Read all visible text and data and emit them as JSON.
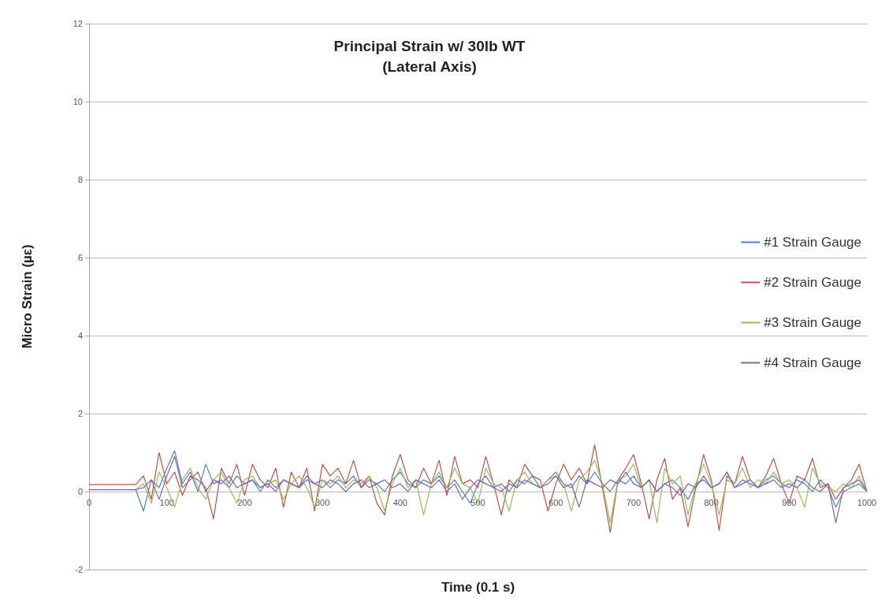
{
  "chart_data": {
    "type": "line",
    "title": "Principal Strain w/ 30lb WT\n(Lateral Axis)",
    "xlabel": "Time (0.1 s)",
    "ylabel": "Micro Strain (µε)",
    "x": [
      0,
      10,
      20,
      30,
      40,
      50,
      60,
      70,
      80,
      90,
      100,
      110,
      120,
      130,
      140,
      150,
      160,
      170,
      180,
      190,
      200,
      210,
      220,
      230,
      240,
      250,
      260,
      270,
      280,
      290,
      300,
      310,
      320,
      330,
      340,
      350,
      360,
      370,
      380,
      390,
      400,
      410,
      420,
      430,
      440,
      450,
      460,
      470,
      480,
      490,
      500,
      510,
      520,
      530,
      540,
      550,
      560,
      570,
      580,
      590,
      600,
      610,
      620,
      630,
      640,
      650,
      660,
      670,
      680,
      690,
      700,
      710,
      720,
      730,
      740,
      750,
      760,
      770,
      780,
      790,
      800,
      810,
      820,
      830,
      840,
      850,
      860,
      870,
      880,
      890,
      900,
      910,
      920,
      930,
      940,
      950,
      960,
      970,
      980,
      990,
      1000
    ],
    "series": [
      {
        "name": "#1 Strain Gauge",
        "color": "#4f81bd",
        "values": [
          null,
          null,
          null,
          null,
          null,
          0.05,
          0.05,
          -0.5,
          0.3,
          0.1,
          0.6,
          1.05,
          0.2,
          0.5,
          0.0,
          0.7,
          0.2,
          0.3,
          0.1,
          0.4,
          0.2,
          0.3,
          0.0,
          0.3,
          0.1,
          0.3,
          0.2,
          0.1,
          0.4,
          0.2,
          0.3,
          0.1,
          0.3,
          0.2,
          0.4,
          0.1,
          0.3,
          0.2,
          0.0,
          0.3,
          0.5,
          0.2,
          0.1,
          0.3,
          0.2,
          0.4,
          0.1,
          0.3,
          0.0,
          -0.3,
          0.2,
          0.4,
          0.1,
          0.2,
          0.0,
          0.3,
          0.2,
          0.4,
          0.1,
          0.3,
          0.5,
          0.2,
          0.1,
          0.4,
          0.2,
          0.5,
          0.2,
          0.0,
          0.3,
          0.2,
          0.4,
          0.1,
          0.3,
          0.0,
          0.2,
          0.3,
          0.1,
          -0.2,
          0.2,
          0.3,
          0.1,
          0.2,
          0.5,
          0.1,
          0.3,
          0.2,
          0.1,
          0.3,
          0.4,
          0.2,
          0.1,
          0.3,
          0.2,
          0.0,
          0.3,
          0.1,
          -0.4,
          0.0,
          0.1,
          0.2,
          0.0
        ]
      },
      {
        "name": "#2 Strain Gauge",
        "color": "#c0504d",
        "values": [
          0.18,
          0.18,
          0.18,
          0.18,
          0.18,
          0.18,
          0.18,
          0.4,
          -0.2,
          1.0,
          0.2,
          0.5,
          -0.1,
          0.4,
          0.3,
          0.1,
          -0.7,
          0.6,
          0.2,
          0.7,
          -0.1,
          0.7,
          0.3,
          0.1,
          0.6,
          -0.4,
          0.5,
          0.1,
          0.6,
          -0.5,
          0.7,
          0.4,
          0.6,
          0.2,
          0.8,
          0.1,
          0.4,
          -0.3,
          -0.6,
          0.4,
          0.95,
          0.3,
          0.1,
          0.6,
          0.2,
          0.8,
          -0.1,
          0.9,
          0.2,
          0.3,
          0.1,
          0.9,
          0.2,
          -0.6,
          0.3,
          0.1,
          0.7,
          0.4,
          0.3,
          -0.5,
          0.2,
          0.7,
          0.3,
          0.6,
          0.2,
          1.2,
          0.1,
          -1.05,
          0.3,
          0.6,
          0.95,
          0.2,
          -0.7,
          0.3,
          0.85,
          -0.2,
          0.1,
          -0.9,
          0.1,
          0.95,
          0.3,
          -1.0,
          0.4,
          0.2,
          0.9,
          0.3,
          0.1,
          0.4,
          0.85,
          0.2,
          -0.3,
          0.4,
          0.3,
          0.85,
          0.1,
          0.2,
          -0.2,
          0.1,
          0.3,
          0.7,
          0.0
        ]
      },
      {
        "name": "#3 Strain Gauge",
        "color": "#9bbb59",
        "values": [
          null,
          null,
          null,
          null,
          null,
          null,
          0.05,
          0.2,
          -0.3,
          0.5,
          0.1,
          -0.4,
          0.3,
          0.6,
          0.1,
          -0.2,
          0.3,
          0.5,
          0.1,
          -0.3,
          0.3,
          0.4,
          0.1,
          0.2,
          0.3,
          -0.2,
          0.2,
          0.4,
          0.1,
          -0.4,
          0.3,
          0.2,
          0.4,
          0.1,
          0.3,
          0.2,
          0.4,
          0.1,
          -0.5,
          0.2,
          0.6,
          0.1,
          0.3,
          -0.6,
          0.2,
          0.5,
          0.1,
          0.6,
          0.2,
          0.1,
          -0.3,
          0.6,
          0.2,
          0.1,
          -0.5,
          0.3,
          0.5,
          0.2,
          0.1,
          0.3,
          0.4,
          0.2,
          -0.5,
          0.3,
          0.5,
          0.8,
          0.2,
          -0.8,
          0.3,
          0.4,
          0.7,
          0.1,
          0.3,
          -0.8,
          0.6,
          0.2,
          0.4,
          -0.6,
          0.2,
          0.7,
          0.2,
          -0.6,
          0.3,
          0.2,
          0.6,
          0.1,
          0.3,
          0.2,
          0.5,
          0.2,
          0.3,
          0.1,
          -0.4,
          0.6,
          0.2,
          0.1,
          0.0,
          0.2,
          0.1,
          0.4,
          0.0
        ]
      },
      {
        "name": "#4 Strain Gauge",
        "color": "#8064a2",
        "values": [
          0.05,
          0.05,
          0.05,
          0.05,
          0.05,
          0.05,
          0.05,
          0.1,
          0.3,
          -0.2,
          0.4,
          0.9,
          0.1,
          0.3,
          0.5,
          0.0,
          0.3,
          0.2,
          0.4,
          0.1,
          0.2,
          0.3,
          0.1,
          0.2,
          0.0,
          0.3,
          0.2,
          0.1,
          0.3,
          0.2,
          0.1,
          0.3,
          0.2,
          0.0,
          0.2,
          0.3,
          0.1,
          0.2,
          0.3,
          0.1,
          0.2,
          0.0,
          0.3,
          0.2,
          0.1,
          0.3,
          0.0,
          0.2,
          -0.2,
          0.1,
          0.3,
          0.2,
          0.1,
          0.0,
          0.2,
          0.1,
          0.3,
          0.2,
          0.1,
          0.2,
          0.4,
          0.1,
          0.2,
          -0.4,
          0.3,
          0.2,
          0.1,
          0.3,
          0.2,
          0.5,
          0.2,
          0.1,
          0.3,
          0.0,
          0.2,
          0.1,
          -0.1,
          0.2,
          0.1,
          0.4,
          0.1,
          0.2,
          0.5,
          0.1,
          0.2,
          0.3,
          0.1,
          0.2,
          0.3,
          0.1,
          0.2,
          0.1,
          0.3,
          0.1,
          0.0,
          0.2,
          -0.8,
          0.1,
          0.2,
          0.3,
          0.0
        ]
      }
    ],
    "xlim": [
      0,
      1000
    ],
    "xticks": [
      0,
      100,
      200,
      300,
      400,
      500,
      600,
      700,
      800,
      900,
      1000
    ],
    "ylim": [
      -2,
      12
    ],
    "yticks": [
      -2,
      0,
      2,
      4,
      6,
      8,
      10,
      12
    ],
    "grid": "y",
    "legend": "right",
    "marker": "none",
    "line_style": "solid"
  }
}
